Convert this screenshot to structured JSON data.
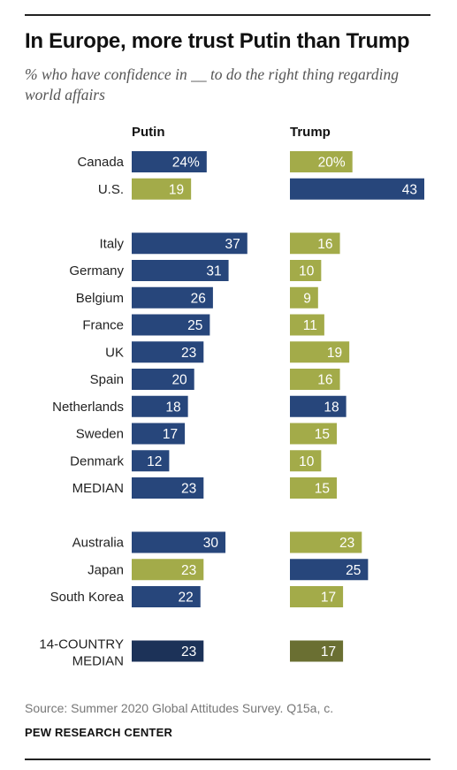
{
  "title": "In Europe, more trust Putin than Trump",
  "subtitle": "% who have confidence in __ to do the right thing regarding world affairs",
  "source": "Source: Summer 2020 Global Attitudes Survey. Q15a, c.",
  "organization": "PEW RESEARCH CENTER",
  "colors": {
    "higher": "#27467b",
    "lower": "#a3ab49",
    "higher_median": "#1c3258",
    "lower_median": "#6a6f32",
    "value_text": "#ffffff"
  },
  "chart_data": {
    "type": "bar",
    "subtype": "paired horizontal bars, darker bar marks the leader with more confidence",
    "series": [
      {
        "name": "Putin",
        "values": [
          24,
          19,
          37,
          31,
          26,
          25,
          23,
          20,
          18,
          17,
          12,
          23,
          30,
          23,
          22,
          23
        ]
      },
      {
        "name": "Trump",
        "values": [
          20,
          43,
          16,
          10,
          9,
          11,
          19,
          16,
          18,
          15,
          10,
          15,
          23,
          25,
          17,
          17
        ]
      }
    ],
    "categories": [
      "Canada",
      "U.S.",
      "Italy",
      "Germany",
      "Belgium",
      "France",
      "UK",
      "Spain",
      "Netherlands",
      "Sweden",
      "Denmark",
      "MEDIAN",
      "Australia",
      "Japan",
      "South Korea",
      "14-COUNTRY MEDIAN"
    ],
    "groups": [
      [
        "Canada",
        "U.S."
      ],
      [
        "Italy",
        "Germany",
        "Belgium",
        "France",
        "UK",
        "Spain",
        "Netherlands",
        "Sweden",
        "Denmark",
        "MEDIAN"
      ],
      [
        "Australia",
        "Japan",
        "South Korea"
      ],
      [
        "14-COUNTRY MEDIAN"
      ]
    ],
    "first_label_suffix": "%",
    "xlim": [
      0,
      43
    ]
  }
}
